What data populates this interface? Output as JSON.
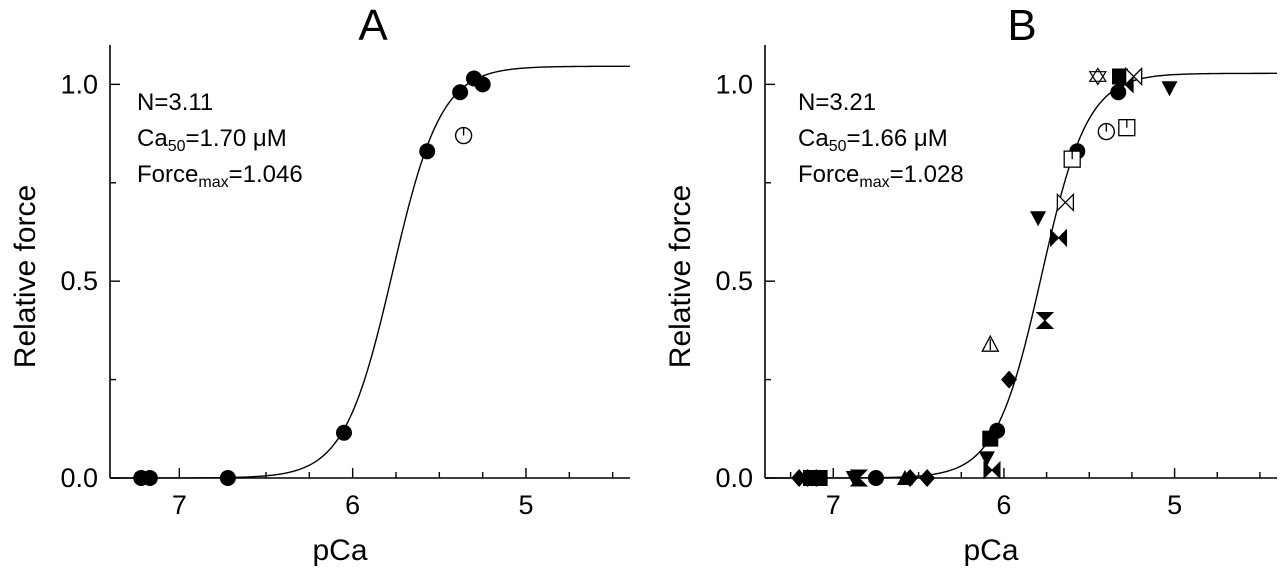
{
  "chart_data": [
    {
      "type": "scatter",
      "panel": "A",
      "xlabel": "pCa",
      "ylabel": "Relative force",
      "xlim": [
        7.4,
        4.4
      ],
      "ylim": [
        0.0,
        1.1
      ],
      "x_ticks": [
        7,
        6,
        5
      ],
      "x_tick_labels": [
        "7",
        "6",
        "5"
      ],
      "y_ticks": [
        0.0,
        0.5,
        1.0
      ],
      "y_tick_labels": [
        "0.0",
        "0.5",
        "1.0"
      ],
      "annotation": {
        "line1": "N=3.11",
        "line2_main": "Ca",
        "line2_sub": "50",
        "line2_rest": "=1.70 μM",
        "line3_main": "Force",
        "line3_sub": "max",
        "line3_rest": "=1.046"
      },
      "fit": {
        "hill_n": 3.11,
        "ca50_uM": 1.7,
        "force_max": 1.046
      },
      "series": [
        {
          "marker": "filled-circle",
          "x": [
            7.22,
            7.17,
            6.72,
            6.05,
            5.57,
            5.38,
            5.3,
            5.25
          ],
          "y": [
            0.0,
            0.0,
            0.0,
            0.115,
            0.83,
            0.98,
            1.015,
            1.0
          ]
        },
        {
          "marker": "open-circle-tick",
          "x": [
            5.36
          ],
          "y": [
            0.87
          ]
        }
      ]
    },
    {
      "type": "scatter",
      "panel": "B",
      "xlabel": "pCa",
      "ylabel": "Relative force",
      "xlim": [
        7.4,
        4.4
      ],
      "ylim": [
        0.0,
        1.1
      ],
      "x_ticks": [
        7,
        6,
        5
      ],
      "x_tick_labels": [
        "7",
        "6",
        "5"
      ],
      "y_ticks": [
        0.0,
        0.5,
        1.0
      ],
      "y_tick_labels": [
        "0.0",
        "0.5",
        "1.0"
      ],
      "annotation": {
        "line1": "N=3.21",
        "line2_main": "Ca",
        "line2_sub": "50",
        "line2_rest": "=1.66 μM",
        "line3_main": "Force",
        "line3_sub": "max",
        "line3_rest": "=1.028"
      },
      "fit": {
        "hill_n": 3.21,
        "ca50_uM": 1.66,
        "force_max": 1.028
      },
      "series": [
        {
          "marker": "filled-diamond",
          "x": [
            7.2,
            7.15,
            7.1,
            6.55,
            6.45,
            5.97
          ],
          "y": [
            0.0,
            0.0,
            0.0,
            0.0,
            0.0,
            0.25
          ]
        },
        {
          "marker": "filled-square",
          "x": [
            7.13,
            7.08,
            6.08,
            5.32
          ],
          "y": [
            0.0,
            0.0,
            0.1,
            1.02
          ]
        },
        {
          "marker": "filled-circle",
          "x": [
            6.75,
            6.04,
            5.57,
            5.33
          ],
          "y": [
            0.0,
            0.12,
            0.83,
            0.98
          ]
        },
        {
          "marker": "filled-triangle-up",
          "x": [
            6.58
          ],
          "y": [
            0.0
          ]
        },
        {
          "marker": "filled-triangle-down",
          "x": [
            6.88,
            6.1,
            5.8,
            5.03
          ],
          "y": [
            0.0,
            0.05,
            0.66,
            0.99
          ]
        },
        {
          "marker": "filled-hourglass",
          "x": [
            6.85,
            5.76
          ],
          "y": [
            0.0,
            0.4
          ]
        },
        {
          "marker": "filled-bowtie",
          "x": [
            6.07,
            5.68,
            5.29
          ],
          "y": [
            0.02,
            0.61,
            1.0
          ]
        },
        {
          "marker": "open-bowtie",
          "x": [
            5.64,
            5.24
          ],
          "y": [
            0.7,
            1.02
          ]
        },
        {
          "marker": "open-triangle-bar",
          "x": [
            6.08
          ],
          "y": [
            0.34
          ]
        },
        {
          "marker": "open-square-tick",
          "x": [
            5.6,
            5.28
          ],
          "y": [
            0.81,
            0.89
          ]
        },
        {
          "marker": "open-circle-tick",
          "x": [
            5.4
          ],
          "y": [
            0.88
          ]
        },
        {
          "marker": "open-star",
          "x": [
            5.45
          ],
          "y": [
            1.02
          ]
        }
      ]
    }
  ]
}
